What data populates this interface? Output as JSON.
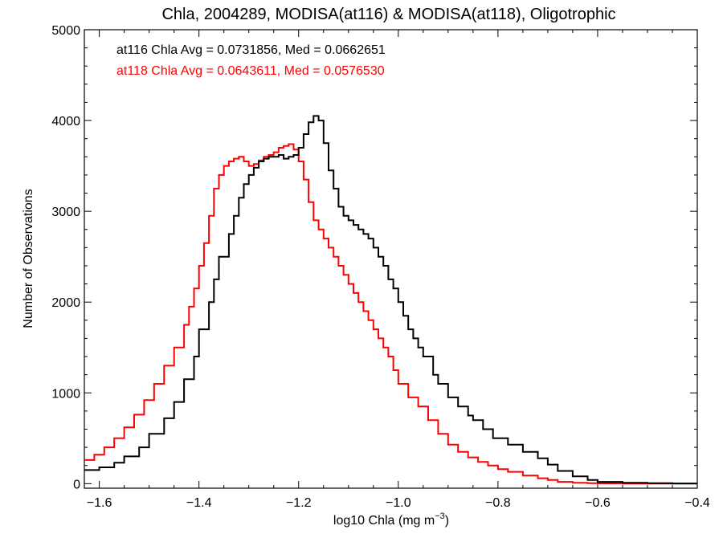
{
  "chart_data": {
    "type": "line",
    "title": "Chla, 2004289, MODISA(at116) & MODISA(at118), Oligotrophic",
    "xlabel": "log10 Chla (mg m",
    "xlabel_sup": "−3",
    "xlabel_end": ")",
    "ylabel": "Number of Observations",
    "xlim": [
      -1.63,
      -0.4
    ],
    "ylim": [
      -50,
      5000
    ],
    "x_ticks": [
      -1.6,
      -1.4,
      -1.2,
      -1.0,
      -0.8,
      -0.6,
      -0.4
    ],
    "x_tick_labels": [
      "−1.6",
      "−1.4",
      "−1.2",
      "−1.0",
      "−0.8",
      "−0.6",
      "−0.4"
    ],
    "y_ticks": [
      0,
      1000,
      2000,
      3000,
      4000,
      5000
    ],
    "y_tick_labels": [
      "0",
      "1000",
      "2000",
      "3000",
      "4000",
      "5000"
    ],
    "grid": false,
    "annotations": [
      {
        "text": "at116 Chla Avg = 0.0731856, Med = 0.0662651",
        "color": "#000000"
      },
      {
        "text": "at118 Chla Avg = 0.0643611, Med = 0.0576530",
        "color": "#ff0000"
      }
    ],
    "series": [
      {
        "color": "#000000",
        "x": [
          -1.63,
          -1.6,
          -1.57,
          -1.55,
          -1.52,
          -1.5,
          -1.47,
          -1.45,
          -1.43,
          -1.41,
          -1.4,
          -1.38,
          -1.37,
          -1.36,
          -1.34,
          -1.33,
          -1.32,
          -1.31,
          -1.3,
          -1.29,
          -1.28,
          -1.27,
          -1.26,
          -1.25,
          -1.24,
          -1.23,
          -1.22,
          -1.21,
          -1.2,
          -1.19,
          -1.18,
          -1.17,
          -1.16,
          -1.15,
          -1.14,
          -1.13,
          -1.12,
          -1.11,
          -1.1,
          -1.09,
          -1.08,
          -1.07,
          -1.06,
          -1.05,
          -1.04,
          -1.03,
          -1.02,
          -1.01,
          -1.0,
          -0.99,
          -0.98,
          -0.97,
          -0.96,
          -0.95,
          -0.93,
          -0.92,
          -0.9,
          -0.88,
          -0.86,
          -0.85,
          -0.83,
          -0.81,
          -0.78,
          -0.75,
          -0.72,
          -0.7,
          -0.68,
          -0.65,
          -0.62,
          -0.6,
          -0.55,
          -0.5,
          -0.45,
          -0.4
        ],
        "y": [
          150,
          180,
          230,
          300,
          400,
          550,
          720,
          900,
          1150,
          1400,
          1700,
          2000,
          2250,
          2500,
          2750,
          2950,
          3150,
          3300,
          3400,
          3480,
          3550,
          3580,
          3600,
          3600,
          3620,
          3580,
          3600,
          3620,
          3700,
          3850,
          3980,
          4050,
          4000,
          3750,
          3450,
          3250,
          3050,
          2950,
          2900,
          2850,
          2800,
          2750,
          2700,
          2600,
          2500,
          2400,
          2250,
          2150,
          2000,
          1850,
          1700,
          1600,
          1500,
          1400,
          1200,
          1100,
          950,
          850,
          750,
          700,
          600,
          500,
          430,
          350,
          280,
          210,
          140,
          80,
          40,
          20,
          10,
          5,
          2,
          0
        ]
      },
      {
        "color": "#ff0000",
        "x": [
          -1.63,
          -1.61,
          -1.59,
          -1.57,
          -1.55,
          -1.53,
          -1.51,
          -1.49,
          -1.47,
          -1.45,
          -1.43,
          -1.42,
          -1.41,
          -1.4,
          -1.39,
          -1.38,
          -1.37,
          -1.36,
          -1.35,
          -1.34,
          -1.33,
          -1.32,
          -1.31,
          -1.3,
          -1.29,
          -1.28,
          -1.27,
          -1.26,
          -1.25,
          -1.24,
          -1.23,
          -1.22,
          -1.21,
          -1.2,
          -1.19,
          -1.18,
          -1.17,
          -1.16,
          -1.15,
          -1.14,
          -1.13,
          -1.12,
          -1.11,
          -1.1,
          -1.09,
          -1.08,
          -1.07,
          -1.06,
          -1.05,
          -1.04,
          -1.03,
          -1.02,
          -1.01,
          -1.0,
          -0.98,
          -0.96,
          -0.94,
          -0.92,
          -0.9,
          -0.88,
          -0.86,
          -0.84,
          -0.82,
          -0.8,
          -0.78,
          -0.75,
          -0.72,
          -0.7,
          -0.68,
          -0.65,
          -0.62,
          -0.6,
          -0.55,
          -0.5,
          -0.45,
          -0.4
        ],
        "y": [
          260,
          320,
          400,
          500,
          620,
          760,
          920,
          1100,
          1300,
          1500,
          1750,
          1950,
          2150,
          2400,
          2650,
          2950,
          3250,
          3400,
          3500,
          3550,
          3580,
          3600,
          3550,
          3500,
          3520,
          3560,
          3600,
          3620,
          3650,
          3700,
          3720,
          3740,
          3680,
          3550,
          3350,
          3100,
          2900,
          2800,
          2700,
          2600,
          2500,
          2400,
          2300,
          2200,
          2100,
          2000,
          1900,
          1800,
          1700,
          1600,
          1500,
          1400,
          1250,
          1100,
          950,
          850,
          700,
          550,
          430,
          350,
          290,
          240,
          200,
          160,
          130,
          90,
          60,
          40,
          20,
          10,
          5,
          3,
          1,
          0,
          0,
          0
        ]
      }
    ]
  }
}
